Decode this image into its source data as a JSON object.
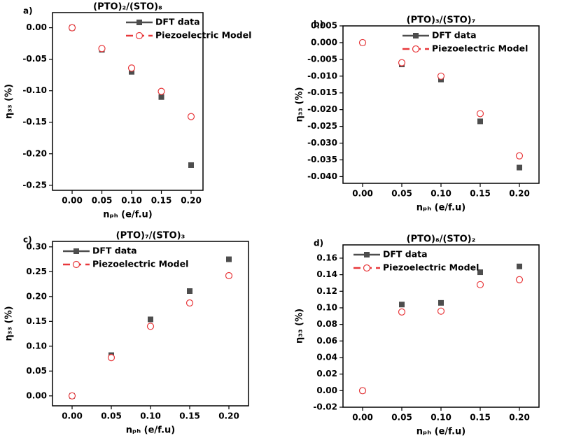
{
  "chart_data": [
    {
      "type": "line",
      "label": "a)",
      "title": "(PTO)₂/(STO)₈",
      "xlabel": "nₚₕ (e/f.u)",
      "ylabel": "η₃₃ (%)",
      "x": [
        0,
        0.05,
        0.1,
        0.15,
        0.2
      ],
      "xlim": [
        -0.033,
        0.22
      ],
      "xticks": [
        {
          "value": 0,
          "label": "0.00"
        },
        {
          "value": 0.05,
          "label": "0.05"
        },
        {
          "value": 0.1,
          "label": "0.10"
        },
        {
          "value": 0.15,
          "label": "0.15"
        },
        {
          "value": 0.2,
          "label": "0.20"
        }
      ],
      "ylim": [
        -0.258,
        0.024
      ],
      "yticks": [
        {
          "value": 0,
          "label": "0.00"
        },
        {
          "value": -0.05,
          "label": "-0.05"
        },
        {
          "value": -0.1,
          "label": "-0.10"
        },
        {
          "value": -0.15,
          "label": "-0.15"
        },
        {
          "value": -0.2,
          "label": "-0.20"
        },
        {
          "value": -0.25,
          "label": "-0.25"
        }
      ],
      "series": [
        {
          "name": "DFT data",
          "color": "#4d4d4d",
          "marker": "square",
          "line_style": "solid",
          "values": [
            0,
            -0.035,
            -0.07,
            -0.11,
            -0.218
          ]
        },
        {
          "name": "Piezoelectric Model",
          "color": "#e8383b",
          "marker": "circle",
          "line_style": "dashed",
          "values": [
            0,
            -0.033,
            -0.064,
            -0.101,
            -0.141
          ]
        }
      ]
    },
    {
      "type": "line",
      "label": "b)",
      "title": "(PTO)₃/(STO)₇",
      "xlabel": "nₚₕ (e/f.u)",
      "ylabel": "η₃₃ (%)",
      "x": [
        0,
        0.05,
        0.1,
        0.15,
        0.2
      ],
      "xlim": [
        -0.025,
        0.225
      ],
      "xticks": [
        {
          "value": 0,
          "label": "0.00"
        },
        {
          "value": 0.05,
          "label": "0.05"
        },
        {
          "value": 0.1,
          "label": "0.10"
        },
        {
          "value": 0.15,
          "label": "0.15"
        },
        {
          "value": 0.2,
          "label": "0.20"
        }
      ],
      "ylim": [
        -0.042,
        0.005
      ],
      "yticks": [
        {
          "value": 0.005,
          "label": "0.005"
        },
        {
          "value": 0,
          "label": "0.000"
        },
        {
          "value": -0.005,
          "label": "-0.005"
        },
        {
          "value": -0.01,
          "label": "-0.010"
        },
        {
          "value": -0.015,
          "label": "-0.015"
        },
        {
          "value": -0.02,
          "label": "-0.020"
        },
        {
          "value": -0.025,
          "label": "-0.025"
        },
        {
          "value": -0.03,
          "label": "-0.030"
        },
        {
          "value": -0.035,
          "label": "-0.035"
        },
        {
          "value": -0.04,
          "label": "-0.040"
        }
      ],
      "series": [
        {
          "name": "DFT data",
          "color": "#4d4d4d",
          "marker": "square",
          "line_style": "solid",
          "values": [
            0,
            -0.0065,
            -0.011,
            -0.0235,
            -0.0373
          ]
        },
        {
          "name": "Piezoelectric Model",
          "color": "#e8383b",
          "marker": "circle",
          "line_style": "dashed",
          "values": [
            0,
            -0.006,
            -0.01,
            -0.0212,
            -0.0338
          ]
        }
      ]
    },
    {
      "type": "line",
      "label": "c)",
      "title": "(PTO)₇/(STO)₃",
      "xlabel": "nₚₕ (e/f.u)",
      "ylabel": "η₃₃ (%)",
      "x": [
        0,
        0.05,
        0.1,
        0.15,
        0.2
      ],
      "xlim": [
        -0.025,
        0.225
      ],
      "xticks": [
        {
          "value": 0,
          "label": "0.00"
        },
        {
          "value": 0.05,
          "label": "0.05"
        },
        {
          "value": 0.1,
          "label": "0.10"
        },
        {
          "value": 0.15,
          "label": "0.15"
        },
        {
          "value": 0.2,
          "label": "0.20"
        }
      ],
      "ylim": [
        -0.02,
        0.311
      ],
      "yticks": [
        {
          "value": 0,
          "label": "0.00"
        },
        {
          "value": 0.05,
          "label": "0.05"
        },
        {
          "value": 0.1,
          "label": "0.10"
        },
        {
          "value": 0.15,
          "label": "0.15"
        },
        {
          "value": 0.2,
          "label": "0.20"
        },
        {
          "value": 0.25,
          "label": "0.25"
        },
        {
          "value": 0.3,
          "label": "0.30"
        }
      ],
      "series": [
        {
          "name": "DFT data",
          "color": "#4d4d4d",
          "marker": "square",
          "line_style": "solid",
          "values": [
            0,
            0.082,
            0.154,
            0.211,
            0.275
          ]
        },
        {
          "name": "Piezoelectric Model",
          "color": "#e8383b",
          "marker": "circle",
          "line_style": "dashed",
          "values": [
            0,
            0.077,
            0.14,
            0.187,
            0.242
          ]
        }
      ]
    },
    {
      "type": "line",
      "label": "d)",
      "title": "(PTO)₈/(STO)₂",
      "xlabel": "nₚₕ (e/f.u)",
      "ylabel": "η₃₃ (%)",
      "x": [
        0,
        0.05,
        0.1,
        0.15,
        0.2
      ],
      "xlim": [
        -0.025,
        0.225
      ],
      "xticks": [
        {
          "value": 0,
          "label": "0.00"
        },
        {
          "value": 0.05,
          "label": "0.05"
        },
        {
          "value": 0.1,
          "label": "0.10"
        },
        {
          "value": 0.15,
          "label": "0.15"
        },
        {
          "value": 0.2,
          "label": "0.20"
        }
      ],
      "ylim": [
        -0.02,
        0.176
      ],
      "yticks": [
        {
          "value": -0.02,
          "label": "-0.02"
        },
        {
          "value": 0,
          "label": "0.00"
        },
        {
          "value": 0.02,
          "label": "0.02"
        },
        {
          "value": 0.04,
          "label": "0.04"
        },
        {
          "value": 0.06,
          "label": "0.06"
        },
        {
          "value": 0.08,
          "label": "0.08"
        },
        {
          "value": 0.1,
          "label": "0.10"
        },
        {
          "value": 0.12,
          "label": "0.12"
        },
        {
          "value": 0.14,
          "label": "0.14"
        },
        {
          "value": 0.16,
          "label": "0.16"
        }
      ],
      "series": [
        {
          "name": "DFT data",
          "color": "#4d4d4d",
          "marker": "square",
          "line_style": "solid",
          "values": [
            0,
            0.104,
            0.106,
            0.143,
            0.15
          ]
        },
        {
          "name": "Piezoelectric Model",
          "color": "#e8383b",
          "marker": "circle",
          "line_style": "dashed",
          "values": [
            0,
            0.095,
            0.096,
            0.128,
            0.134
          ]
        }
      ]
    }
  ]
}
